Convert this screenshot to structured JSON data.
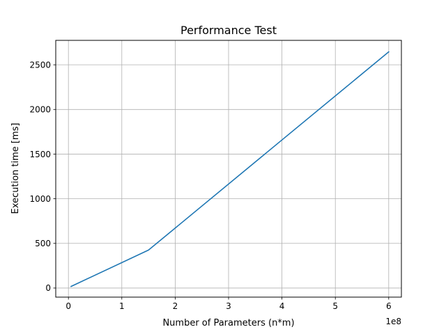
{
  "chart_data": {
    "type": "line",
    "title": "Performance Test",
    "xlabel": "Number of Parameters (n*m)",
    "ylabel": "Execution time [ms]",
    "x_offset_label": "1e8",
    "x_scale": 100000000,
    "xlim": [
      -23750000,
      623750000
    ],
    "ylim": [
      -101.7,
      2773.7
    ],
    "xticks": [
      0,
      100000000,
      200000000,
      300000000,
      400000000,
      500000000,
      600000000
    ],
    "xtick_labels": [
      "0",
      "1",
      "2",
      "3",
      "4",
      "5",
      "6"
    ],
    "yticks": [
      0,
      500,
      1000,
      1500,
      2000,
      2500
    ],
    "ytick_labels": [
      "0",
      "500",
      "1000",
      "1500",
      "2000",
      "2500"
    ],
    "grid": true,
    "series": [
      {
        "color": "#1f77b4",
        "x": [
          5000000,
          150000000,
          600000000
        ],
        "y": [
          18,
          425,
          2645
        ]
      }
    ]
  }
}
